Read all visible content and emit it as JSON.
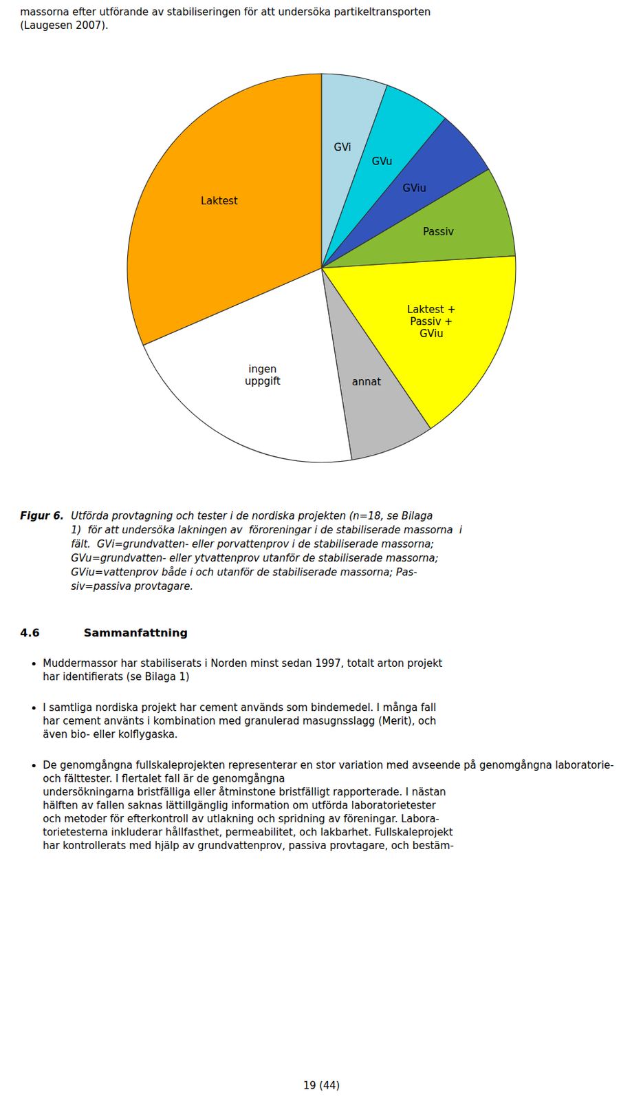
{
  "chart_data": {
    "type": "pie",
    "categories": [
      "GVi",
      "GVu",
      "GViu",
      "Passiv",
      "Laktest +\nPassiv +\nGViu",
      "annat",
      "ingen\nuppgift",
      "Laktest"
    ],
    "values": [
      5.5,
      5.5,
      5.5,
      7.5,
      16.5,
      7.0,
      21.0,
      31.5
    ],
    "colors": [
      "#ADD8E6",
      "#00CCDD",
      "#3355BB",
      "#88BB33",
      "#FFFF00",
      "#BBBBBB",
      "#FFFFFF",
      "#FFA500"
    ]
  },
  "page": {
    "top_text": [
      "massorna efter utförande av stabiliseringen för att undersöka partikeltransporten",
      "(Laugesen 2007)."
    ],
    "caption_label": "Figur 6.",
    "caption": [
      "Utförda provtagning och tester i de nordiska projekten (n=18, se Bilaga",
      "1)  för att undersöka lakningen av  föroreningar i de stabiliserade massorna  i",
      "fält.  GVi=grundvatten- eller porvattenprov i de stabiliserade massorna;",
      "GVu=grundvatten- eller ytvattenprov utanför de stabiliserade massorna;",
      "GViu=vattenprov både i och utanför de stabiliserade massorna; Pas-",
      "siv=passiva provtagare."
    ],
    "section_number": "4.6",
    "section_title": "Sammanfattning",
    "bullets": [
      [
        "Muddermassor har stabiliserats i Norden minst sedan 1997, totalt arton projekt",
        "har identifierats (se Bilaga 1)"
      ],
      [
        "I samtliga nordiska projekt har cement används som bindemedel. I många fall",
        "har cement använts i kombination med granulerad masugnsslagg (Merit), och",
        "även bio- eller kolflygaska."
      ],
      [
        "De genomgångna fullskaleprojekten representerar en stor variation med avseende på genomgångna laboratorie- och fälttester. I flertalet fall är de genomgångna",
        "undersökningarna bristfälliga eller åtminstone bristfälligt rapporterade. I nästan",
        "hälften av fallen saknas lättillgänglig information om utförda laboratorietester",
        "och metoder för efterkontroll av utlakning och spridning av föreningar. Labora-",
        "torietesterna inkluderar hållfasthet, permeabilitet, och lakbarhet. Fullskaleprojekt",
        "har kontrollerats med hjälp av grundvattenprov, passiva provtagare, och bestäm-"
      ]
    ],
    "page_number": "19 (44)"
  }
}
